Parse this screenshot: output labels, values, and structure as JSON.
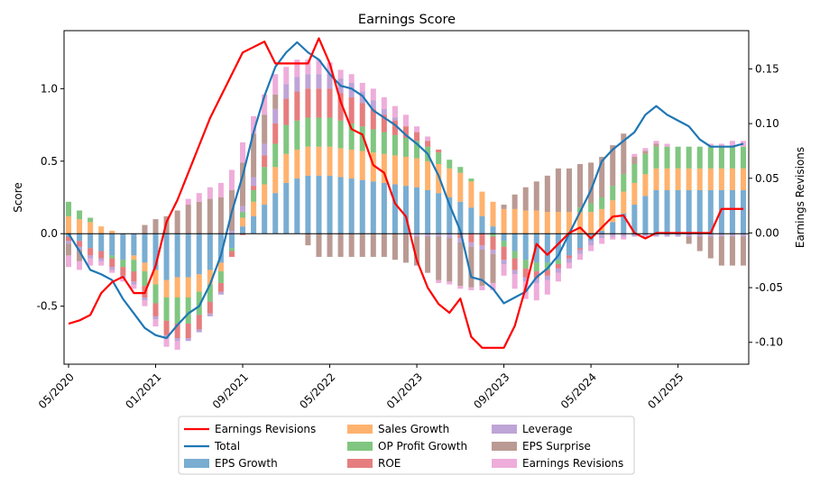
{
  "chart_data": {
    "type": "bar",
    "title": "Earnings Score",
    "ylabel": "Score",
    "y2label": "Earnings Revisions",
    "ylim": [
      -0.9,
      1.4
    ],
    "y2lim": [
      -0.12,
      0.185
    ],
    "yticks": [
      "-0.5",
      "0.0",
      "0.5",
      "1.0"
    ],
    "y2ticks": [
      "-0.10",
      "-0.05",
      "0.00",
      "0.05",
      "0.10",
      "0.15"
    ],
    "xtick_labels": [
      "05/2020",
      "01/2021",
      "09/2021",
      "05/2022",
      "01/2023",
      "09/2023",
      "05/2024",
      "01/2025"
    ],
    "legend_position": "bottom-center",
    "categories": [
      "05/2020",
      "06/2020",
      "07/2020",
      "08/2020",
      "09/2020",
      "10/2020",
      "11/2020",
      "12/2020",
      "01/2021",
      "02/2021",
      "03/2021",
      "04/2021",
      "05/2021",
      "06/2021",
      "07/2021",
      "08/2021",
      "09/2021",
      "10/2021",
      "11/2021",
      "12/2021",
      "01/2022",
      "02/2022",
      "03/2022",
      "04/2022",
      "05/2022",
      "06/2022",
      "07/2022",
      "08/2022",
      "09/2022",
      "10/2022",
      "11/2022",
      "12/2022",
      "01/2023",
      "02/2023",
      "03/2023",
      "04/2023",
      "05/2023",
      "06/2023",
      "07/2023",
      "08/2023",
      "09/2023",
      "10/2023",
      "11/2023",
      "12/2023",
      "01/2024",
      "02/2024",
      "03/2024",
      "04/2024",
      "05/2024",
      "06/2024",
      "07/2024",
      "08/2024",
      "09/2024",
      "10/2024",
      "11/2024",
      "12/2024",
      "01/2025",
      "02/2025",
      "03/2025",
      "04/2025",
      "05/2025",
      "06/2025",
      "07/2025"
    ],
    "series": [
      {
        "name": "EPS Growth",
        "color": "#1f77b4",
        "values": [
          -0.02,
          -0.05,
          -0.1,
          -0.12,
          -0.15,
          -0.18,
          -0.15,
          -0.2,
          -0.25,
          -0.32,
          -0.3,
          -0.3,
          -0.28,
          -0.25,
          -0.2,
          -0.1,
          0.05,
          0.12,
          0.2,
          0.28,
          0.35,
          0.38,
          0.4,
          0.4,
          0.4,
          0.39,
          0.38,
          0.37,
          0.36,
          0.35,
          0.34,
          0.33,
          0.32,
          0.3,
          0.28,
          0.25,
          0.22,
          0.18,
          0.12,
          0.05,
          -0.05,
          -0.12,
          -0.18,
          -0.2,
          -0.2,
          -0.18,
          -0.15,
          -0.1,
          -0.05,
          0.02,
          0.08,
          0.14,
          0.2,
          0.26,
          0.3,
          0.3,
          0.3,
          0.3,
          0.3,
          0.3,
          0.3,
          0.3,
          0.3
        ]
      },
      {
        "name": "Sales Growth",
        "color": "#ff7f0e",
        "values": [
          0.12,
          0.1,
          0.08,
          0.05,
          0.02,
          0.0,
          -0.03,
          -0.06,
          -0.1,
          -0.12,
          -0.14,
          -0.14,
          -0.12,
          -0.1,
          -0.06,
          0.0,
          0.06,
          0.1,
          0.14,
          0.18,
          0.2,
          0.2,
          0.2,
          0.2,
          0.2,
          0.2,
          0.2,
          0.2,
          0.2,
          0.2,
          0.2,
          0.2,
          0.2,
          0.2,
          0.2,
          0.2,
          0.2,
          0.18,
          0.17,
          0.17,
          0.17,
          0.17,
          0.16,
          0.16,
          0.15,
          0.15,
          0.15,
          0.15,
          0.15,
          0.15,
          0.15,
          0.15,
          0.15,
          0.15,
          0.15,
          0.15,
          0.15,
          0.15,
          0.15,
          0.15,
          0.15,
          0.15,
          0.15
        ]
      },
      {
        "name": "OP Profit Growth",
        "color": "#2ca02c",
        "values": [
          0.1,
          0.06,
          0.03,
          0.0,
          -0.02,
          -0.05,
          -0.08,
          -0.1,
          -0.13,
          -0.16,
          -0.18,
          -0.18,
          -0.16,
          -0.12,
          -0.08,
          -0.02,
          0.04,
          0.08,
          0.12,
          0.16,
          0.2,
          0.2,
          0.2,
          0.2,
          0.2,
          0.19,
          0.18,
          0.17,
          0.16,
          0.15,
          0.14,
          0.13,
          0.12,
          0.1,
          0.08,
          0.06,
          0.04,
          0.02,
          0.0,
          -0.02,
          -0.04,
          -0.05,
          -0.06,
          -0.06,
          -0.05,
          -0.03,
          0.0,
          0.03,
          0.06,
          0.08,
          0.1,
          0.12,
          0.13,
          0.14,
          0.15,
          0.15,
          0.15,
          0.15,
          0.15,
          0.15,
          0.15,
          0.15,
          0.15
        ]
      },
      {
        "name": "ROE",
        "color": "#d62728",
        "values": [
          -0.03,
          -0.04,
          -0.05,
          -0.05,
          -0.06,
          -0.06,
          -0.07,
          -0.08,
          -0.09,
          -0.1,
          -0.1,
          -0.1,
          -0.1,
          -0.08,
          -0.06,
          -0.04,
          -0.01,
          0.03,
          0.08,
          0.14,
          0.18,
          0.2,
          0.2,
          0.2,
          0.2,
          0.19,
          0.18,
          0.16,
          0.14,
          0.12,
          0.1,
          0.08,
          0.06,
          0.04,
          0.02,
          0.0,
          -0.03,
          -0.06,
          -0.08,
          -0.09,
          -0.09,
          -0.08,
          -0.06,
          -0.05,
          -0.04,
          -0.03,
          -0.02,
          -0.01,
          0.0,
          0.0,
          0.0,
          0.0,
          0.0,
          0.0,
          0.0,
          0.0,
          0.0,
          0.0,
          0.0,
          0.0,
          0.0,
          0.0,
          0.0
        ]
      },
      {
        "name": "Leverage",
        "color": "#9467bd",
        "values": [
          -0.02,
          -0.02,
          -0.02,
          -0.02,
          -0.02,
          -0.02,
          -0.02,
          -0.02,
          -0.02,
          -0.02,
          -0.02,
          -0.02,
          -0.02,
          -0.02,
          -0.02,
          0.02,
          0.04,
          0.06,
          0.08,
          0.1,
          0.1,
          0.1,
          0.1,
          0.1,
          0.1,
          0.1,
          0.1,
          0.08,
          0.06,
          0.04,
          0.02,
          0.0,
          -0.02,
          -0.02,
          -0.02,
          -0.03,
          -0.03,
          -0.03,
          -0.03,
          -0.03,
          -0.03,
          -0.03,
          -0.03,
          -0.03,
          -0.03,
          -0.03,
          -0.03,
          -0.03,
          -0.03,
          -0.03,
          -0.02,
          -0.02,
          -0.02,
          -0.02,
          -0.02,
          -0.02,
          -0.02,
          -0.02,
          -0.02,
          -0.02,
          -0.02,
          -0.02,
          -0.02
        ]
      },
      {
        "name": "EPS Surprise",
        "color": "#8c564b",
        "values": [
          -0.08,
          -0.08,
          0.0,
          0.0,
          0.0,
          0.0,
          0.0,
          0.06,
          0.1,
          0.12,
          0.16,
          0.2,
          0.22,
          0.24,
          0.25,
          0.28,
          0.3,
          0.3,
          0.2,
          0.1,
          0.0,
          0.0,
          -0.08,
          -0.16,
          -0.16,
          -0.16,
          -0.16,
          -0.16,
          -0.16,
          -0.16,
          -0.18,
          -0.2,
          -0.2,
          -0.25,
          -0.3,
          -0.3,
          -0.3,
          -0.28,
          -0.25,
          -0.2,
          0.03,
          0.1,
          0.16,
          0.2,
          0.25,
          0.3,
          0.3,
          0.3,
          0.28,
          0.28,
          0.28,
          0.28,
          0.05,
          0.02,
          0.02,
          0.0,
          0.0,
          -0.05,
          -0.1,
          -0.15,
          -0.2,
          -0.2,
          -0.2
        ]
      },
      {
        "name": "Earnings Revisions",
        "color": "#e377c2",
        "values": [
          -0.08,
          -0.06,
          -0.05,
          -0.03,
          -0.02,
          -0.02,
          -0.03,
          -0.04,
          -0.05,
          -0.06,
          -0.06,
          0.04,
          0.06,
          0.08,
          0.1,
          0.14,
          0.14,
          0.12,
          0.14,
          0.14,
          0.12,
          0.12,
          0.1,
          0.1,
          0.08,
          0.06,
          0.06,
          0.06,
          0.08,
          0.08,
          0.08,
          0.08,
          0.04,
          0.03,
          -0.02,
          -0.02,
          -0.02,
          -0.02,
          -0.03,
          -0.05,
          -0.08,
          -0.1,
          -0.12,
          -0.12,
          -0.1,
          -0.06,
          -0.04,
          -0.04,
          -0.04,
          -0.04,
          -0.02,
          -0.02,
          0.02,
          0.02,
          0.02,
          0.02,
          0.0,
          0.0,
          0.0,
          0.02,
          0.02,
          0.04,
          0.04
        ]
      }
    ],
    "lines": [
      {
        "name": "Total",
        "axis": "left",
        "color": "#1f77b4",
        "values": [
          0.0,
          -0.12,
          -0.25,
          -0.28,
          -0.32,
          -0.45,
          -0.55,
          -0.65,
          -0.7,
          -0.72,
          -0.63,
          -0.55,
          -0.5,
          -0.35,
          -0.15,
          0.15,
          0.4,
          0.7,
          0.95,
          1.15,
          1.25,
          1.32,
          1.25,
          1.2,
          1.1,
          1.02,
          1.0,
          0.95,
          0.85,
          0.8,
          0.75,
          0.68,
          0.62,
          0.55,
          0.4,
          0.2,
          0.02,
          -0.3,
          -0.32,
          -0.38,
          -0.48,
          -0.44,
          -0.4,
          -0.3,
          -0.24,
          -0.15,
          0.0,
          0.15,
          0.3,
          0.5,
          0.58,
          0.64,
          0.7,
          0.82,
          0.88,
          0.82,
          0.78,
          0.74,
          0.65,
          0.6,
          0.6,
          0.6,
          0.62
        ]
      },
      {
        "name": "Earnings Revisions",
        "axis": "right",
        "color": "#ff0000",
        "values": [
          -0.083,
          -0.08,
          -0.075,
          -0.055,
          -0.045,
          -0.04,
          -0.055,
          -0.055,
          -0.03,
          0.01,
          0.03,
          0.055,
          0.08,
          0.105,
          0.125,
          0.145,
          0.165,
          0.17,
          0.175,
          0.155,
          0.155,
          0.155,
          0.155,
          0.178,
          0.155,
          0.12,
          0.095,
          0.09,
          0.062,
          0.055,
          0.027,
          0.015,
          -0.025,
          -0.05,
          -0.065,
          -0.073,
          -0.06,
          -0.095,
          -0.105,
          -0.105,
          -0.105,
          -0.085,
          -0.05,
          -0.01,
          -0.02,
          -0.01,
          0.0,
          0.005,
          -0.005,
          0.005,
          0.015,
          0.016,
          0.0,
          -0.005,
          0.0,
          0.0,
          0.0,
          0.0,
          0.0,
          0.0,
          0.022,
          0.022,
          0.022
        ]
      }
    ],
    "legend": [
      "Earnings Revisions",
      "Total",
      "EPS Growth",
      "Sales Growth",
      "OP Profit Growth",
      "ROE",
      "Leverage",
      "EPS Surprise",
      "Earnings Revisions"
    ]
  }
}
